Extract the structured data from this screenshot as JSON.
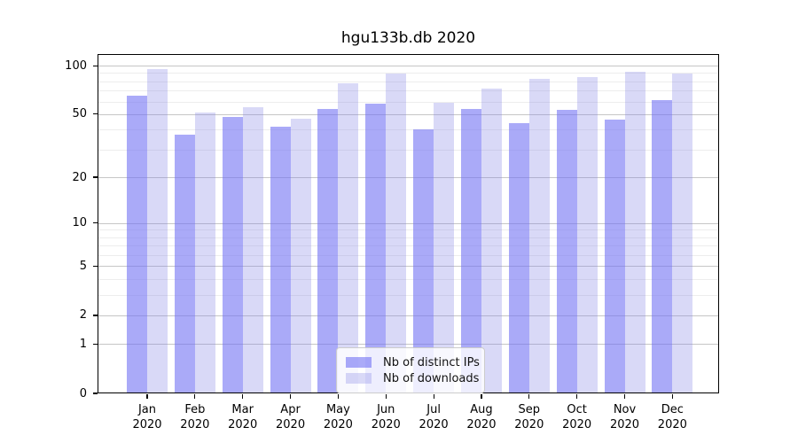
{
  "chart_data": {
    "type": "bar",
    "title": "hgu133b.db 2020",
    "categories": [
      "Jan",
      "Feb",
      "Mar",
      "Apr",
      "May",
      "Jun",
      "Jul",
      "Aug",
      "Sep",
      "Oct",
      "Nov",
      "Dec"
    ],
    "x_year": "2020",
    "series": [
      {
        "name": "Nb of distinct IPs",
        "color": "rgba(113,113,243,0.6)",
        "color_on_white": "#aaaaf8",
        "values": [
          65,
          37,
          48,
          42,
          54,
          58,
          40,
          54,
          44,
          53,
          46,
          61
        ]
      },
      {
        "name": "Nb of downloads",
        "color": "rgba(128,128,230,0.3)",
        "color_on_white": "#d9d9f7",
        "values": [
          95,
          51,
          55,
          47,
          78,
          89,
          59,
          72,
          83,
          85,
          92,
          90
        ]
      }
    ],
    "yscale": "log1p",
    "ylim": [
      0,
      118
    ],
    "y_ticks": [
      0,
      1,
      2,
      5,
      10,
      20,
      50,
      100
    ],
    "y_minor_ticks": [
      3,
      4,
      6,
      7,
      8,
      9,
      30,
      40,
      60,
      70,
      80,
      90
    ],
    "grid": true,
    "legend_position": "lower center"
  }
}
